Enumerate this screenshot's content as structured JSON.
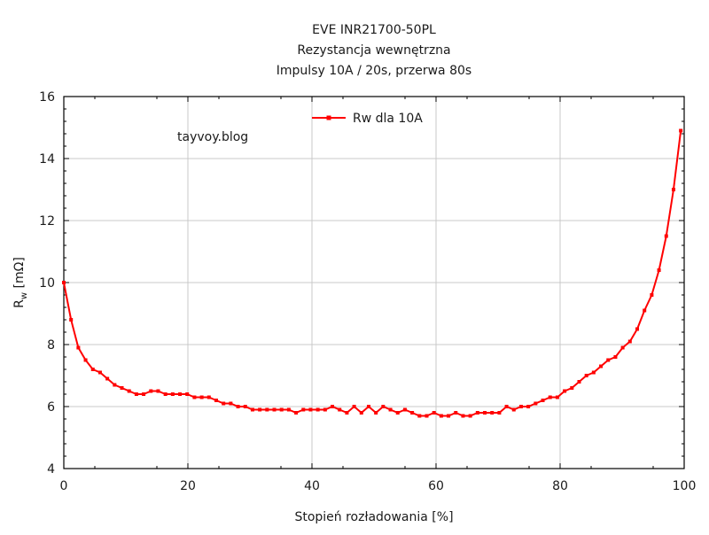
{
  "chart_data": {
    "type": "line",
    "title": [
      "EVE INR21700-50PL",
      "Rezystancja wewnętrzna",
      "Impulsy 10A / 20s, przerwa 80s"
    ],
    "xlabel": "Stopień rozładowania [%]",
    "ylabel_main": "R",
    "ylabel_sub": "w",
    "ylabel_unit": " [mΩ]",
    "xlim": [
      0,
      100
    ],
    "ylim": [
      4,
      16
    ],
    "xticks": [
      0,
      20,
      40,
      60,
      80,
      100
    ],
    "yticks": [
      4,
      6,
      8,
      10,
      12,
      14,
      16
    ],
    "grid": true,
    "legend_position": "top-center",
    "annotation": "tayvoy.blog",
    "annotation_color": "#0000ff",
    "series": [
      {
        "name": "Rw dla 10A",
        "color": "#ff0000",
        "x_start": 0,
        "x_step": 1.17,
        "values": [
          10,
          8.8,
          7.9,
          7.5,
          7.2,
          7.1,
          6.9,
          6.7,
          6.6,
          6.5,
          6.4,
          6.4,
          6.5,
          6.5,
          6.4,
          6.4,
          6.4,
          6.4,
          6.3,
          6.3,
          6.3,
          6.2,
          6.1,
          6.1,
          6.0,
          6.0,
          5.9,
          5.9,
          5.9,
          5.9,
          5.9,
          5.9,
          5.8,
          5.9,
          5.9,
          5.9,
          5.9,
          6.0,
          5.9,
          5.8,
          6.0,
          5.8,
          6.0,
          5.8,
          6.0,
          5.9,
          5.8,
          5.9,
          5.8,
          5.7,
          5.7,
          5.8,
          5.7,
          5.7,
          5.8,
          5.7,
          5.7,
          5.8,
          5.8,
          5.8,
          5.8,
          6.0,
          5.9,
          6.0,
          6.0,
          6.1,
          6.2,
          6.3,
          6.3,
          6.5,
          6.6,
          6.8,
          7.0,
          7.1,
          7.3,
          7.5,
          7.6,
          7.9,
          8.1,
          8.5,
          9.1,
          9.6,
          10.4,
          11.5,
          13.0,
          14.9
        ]
      }
    ]
  }
}
